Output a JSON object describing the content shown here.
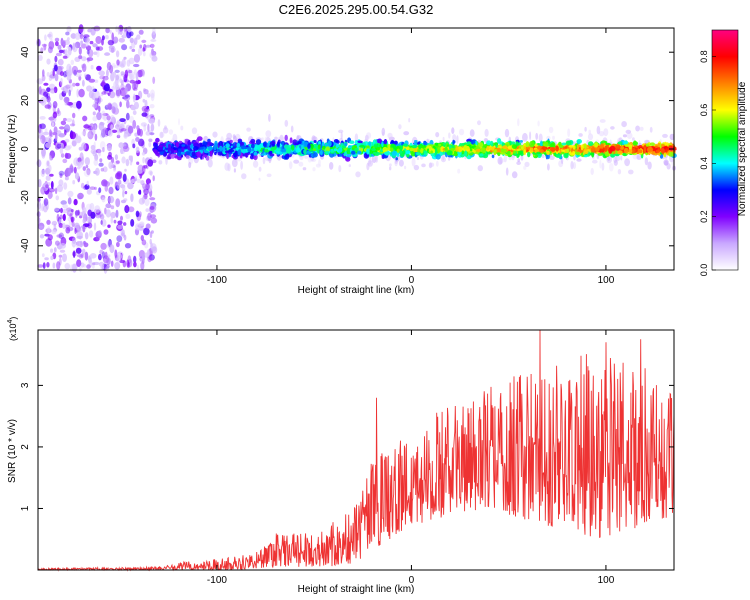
{
  "title": "C2E6.2025.295.00.54.G32",
  "chart_data": [
    {
      "type": "heatmap",
      "title": "C2E6.2025.295.00.54.G32",
      "xlabel": "Height of straight line (km)",
      "ylabel": "Frequency (Hz)",
      "xlim": [
        -192,
        135
      ],
      "ylim": [
        -50,
        50
      ],
      "x_ticks": [
        -100,
        0,
        100
      ],
      "y_ticks": [
        -40,
        -20,
        0,
        20,
        40
      ],
      "colorbar": {
        "label": "Normalized spectral amplitude",
        "range": [
          0.0,
          0.9
        ],
        "ticks": [
          0.0,
          0.2,
          0.4,
          0.6,
          0.8
        ],
        "colors": [
          "#ffffff",
          "#c9a8ff",
          "#8000ff",
          "#0000ff",
          "#00ffff",
          "#00ff00",
          "#ffff00",
          "#ff8000",
          "#ff0000",
          "#ff0080"
        ]
      },
      "description_of_regions": [
        {
          "x_range": [
            -192,
            -132
          ],
          "freq_range": [
            -50,
            50
          ],
          "amplitude": [
            0.05,
            0.25
          ]
        },
        {
          "x_range": [
            -132,
            135
          ],
          "freq_range": [
            -8,
            8
          ],
          "amplitude": [
            0.1,
            0.9
          ]
        }
      ]
    },
    {
      "type": "line",
      "xlabel": "Height of straight line (km)",
      "ylabel": "SNR (10 * v/v)",
      "y_multiplier": "(x10",
      "y_multiplier_exp": "4",
      "y_multiplier_close": ")",
      "xlim": [
        -192,
        135
      ],
      "ylim": [
        0,
        3.9
      ],
      "x_ticks": [
        -100,
        0,
        100
      ],
      "y_ticks": [
        1,
        2,
        3
      ],
      "color": "#ee3333",
      "envelope": [
        {
          "x": -192,
          "low": 0.0,
          "high": 0.03
        },
        {
          "x": -130,
          "low": 0.0,
          "high": 0.05
        },
        {
          "x": -120,
          "low": 0.0,
          "high": 0.12
        },
        {
          "x": -95,
          "low": 0.0,
          "high": 0.2
        },
        {
          "x": -80,
          "low": 0.02,
          "high": 0.3
        },
        {
          "x": -70,
          "low": 0.05,
          "high": 0.6
        },
        {
          "x": -55,
          "low": 0.05,
          "high": 0.6
        },
        {
          "x": -40,
          "low": 0.05,
          "high": 0.8
        },
        {
          "x": -30,
          "low": 0.1,
          "high": 1.0
        },
        {
          "x": -20,
          "low": 0.3,
          "high": 1.8
        },
        {
          "x": -10,
          "low": 0.5,
          "high": 2.0
        },
        {
          "x": 0,
          "low": 0.7,
          "high": 2.3
        },
        {
          "x": 20,
          "low": 0.9,
          "high": 2.7
        },
        {
          "x": 40,
          "low": 1.0,
          "high": 3.0
        },
        {
          "x": 60,
          "low": 0.8,
          "high": 3.3
        },
        {
          "x": 80,
          "low": 0.6,
          "high": 3.5
        },
        {
          "x": 100,
          "low": 0.5,
          "high": 3.6
        },
        {
          "x": 120,
          "low": 0.7,
          "high": 3.3
        },
        {
          "x": 135,
          "low": 0.9,
          "high": 2.8
        }
      ],
      "notable_peaks": [
        {
          "x": -18,
          "y": 2.8
        },
        {
          "x": 66,
          "y": 3.9
        },
        {
          "x": 100,
          "y": 3.7
        },
        {
          "x": 118,
          "y": 3.75
        }
      ]
    }
  ]
}
